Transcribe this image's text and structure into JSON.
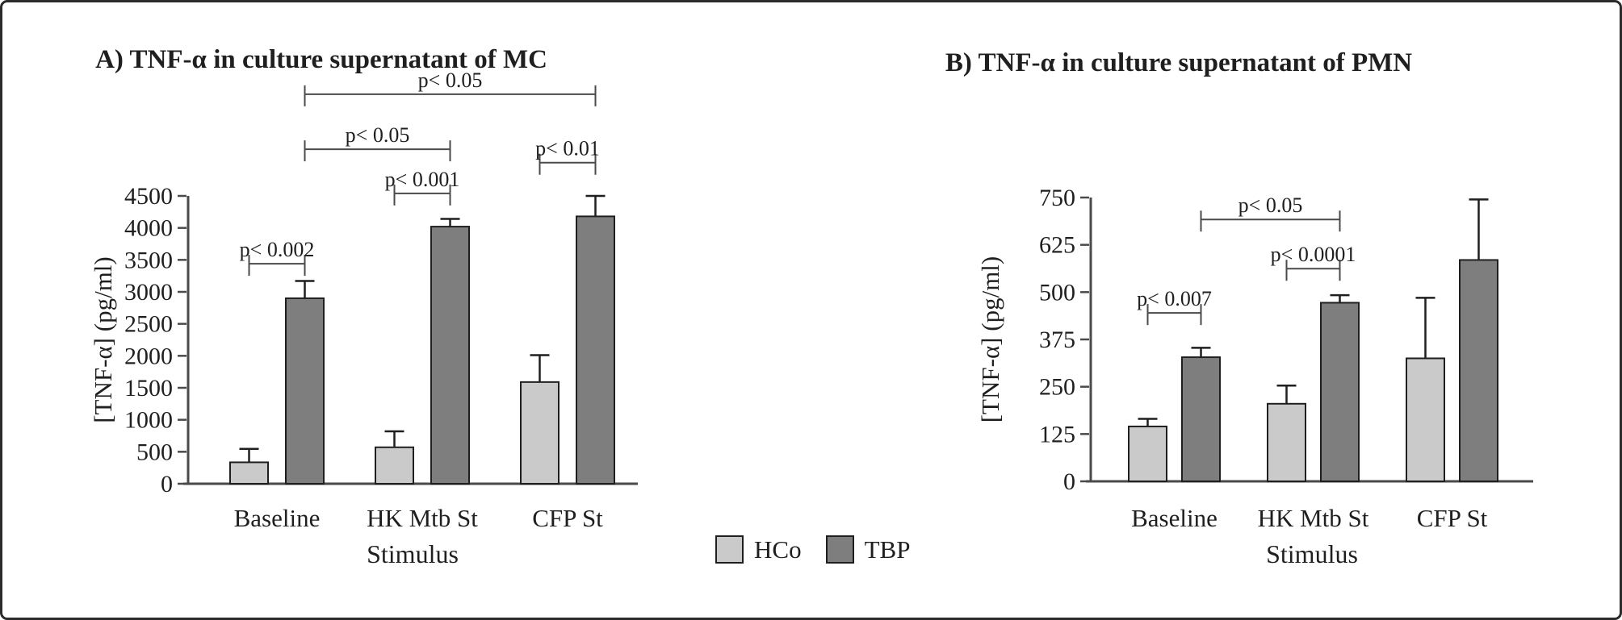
{
  "figure": {
    "background": "#ffffff",
    "frame_color": "#2b2b2b",
    "axis_color": "#4a4a4a",
    "text_color": "#1f1f1f"
  },
  "legend": {
    "items": [
      {
        "label": "HCo",
        "color": "#cacaca"
      },
      {
        "label": "TBP",
        "color": "#7e7e7e"
      }
    ]
  },
  "chart_data": [
    {
      "id": "A",
      "type": "bar",
      "title": "A) TNF-α in culture supernatant of MC",
      "xlabel": "Stimulus",
      "ylabel": "[TNF-α] (pg/ml)",
      "ylim": [
        0,
        4500
      ],
      "ytick_step": 500,
      "grid": false,
      "categories": [
        "Baseline",
        "HK Mtb St",
        "CFP St"
      ],
      "series": [
        {
          "name": "HCo",
          "color": "#cacaca",
          "values": [
            335,
            570,
            1590
          ],
          "errors": [
            210,
            250,
            420
          ]
        },
        {
          "name": "TBP",
          "color": "#7e7e7e",
          "values": [
            2900,
            4020,
            4180
          ],
          "errors": [
            270,
            120,
            320
          ]
        }
      ],
      "significance_brackets": [
        {
          "label": "p< 0.002",
          "from": {
            "category": 0,
            "series": 0
          },
          "to": {
            "category": 0,
            "series": 1
          },
          "y": 3440
        },
        {
          "label": "p< 0.001",
          "from": {
            "category": 1,
            "series": 0
          },
          "to": {
            "category": 1,
            "series": 1
          },
          "y": 4540
        },
        {
          "label": "p< 0.01",
          "from": {
            "category": 2,
            "series": 0
          },
          "to": {
            "category": 2,
            "series": 1
          },
          "y": 5020
        },
        {
          "label": "p< 0.05",
          "from": {
            "category": 0,
            "series": 1
          },
          "to": {
            "category": 1,
            "series": 1
          },
          "y": 5230
        },
        {
          "label": "p< 0.05",
          "from": {
            "category": 0,
            "series": 1
          },
          "to": {
            "category": 2,
            "series": 1
          },
          "y": 6090
        }
      ]
    },
    {
      "id": "B",
      "type": "bar",
      "title": "B) TNF-α in culture supernatant of PMN",
      "xlabel": "Stimulus",
      "ylabel": "[TNF-α] (pg/ml)",
      "ylim": [
        0,
        750
      ],
      "ytick_step": 125,
      "grid": false,
      "categories": [
        "Baseline",
        "HK Mtb St",
        "CFP St"
      ],
      "series": [
        {
          "name": "HCo",
          "color": "#cacaca",
          "values": [
            145,
            205,
            325
          ],
          "errors": [
            20,
            48,
            160
          ]
        },
        {
          "name": "TBP",
          "color": "#7e7e7e",
          "values": [
            328,
            472,
            585
          ],
          "errors": [
            25,
            20,
            160
          ]
        }
      ],
      "significance_brackets": [
        {
          "label": "p< 0.007",
          "from": {
            "category": 0,
            "series": 0
          },
          "to": {
            "category": 0,
            "series": 1
          },
          "y": 445
        },
        {
          "label": "p< 0.0001",
          "from": {
            "category": 1,
            "series": 0
          },
          "to": {
            "category": 1,
            "series": 1
          },
          "y": 562
        },
        {
          "label": "p< 0.05",
          "from": {
            "category": 0,
            "series": 1
          },
          "to": {
            "category": 1,
            "series": 1
          },
          "y": 692
        }
      ]
    }
  ]
}
